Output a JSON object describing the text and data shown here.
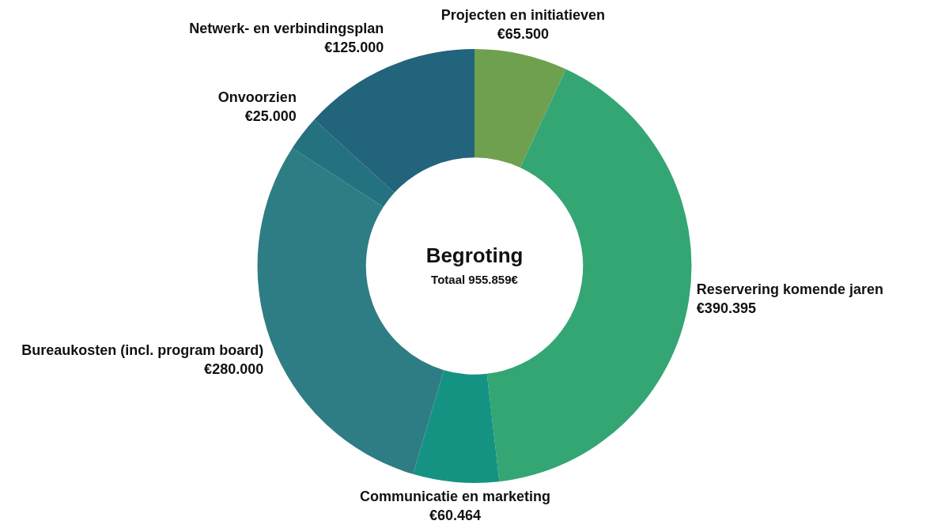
{
  "chart_data": {
    "type": "donut",
    "title": "Begroting",
    "subtitle": "Totaal 955.859€",
    "categories": [
      "Projecten en initiatieven",
      "Reservering komende jaren",
      "Communicatie en marketing",
      "Bureaukosten (incl. program board)",
      "Onvoorzien",
      "Netwerk- en verbindingsplan"
    ],
    "values": [
      65500,
      390395,
      60464,
      280000,
      25000,
      125000
    ],
    "value_labels": [
      "€65.500",
      "€390.395",
      "€60.464",
      "€280.000",
      "€25.000",
      "€125.000"
    ],
    "colors": [
      "#6fa04f",
      "#33a673",
      "#149383",
      "#2e7d84",
      "#24717f",
      "#21647c"
    ],
    "legend": false
  }
}
